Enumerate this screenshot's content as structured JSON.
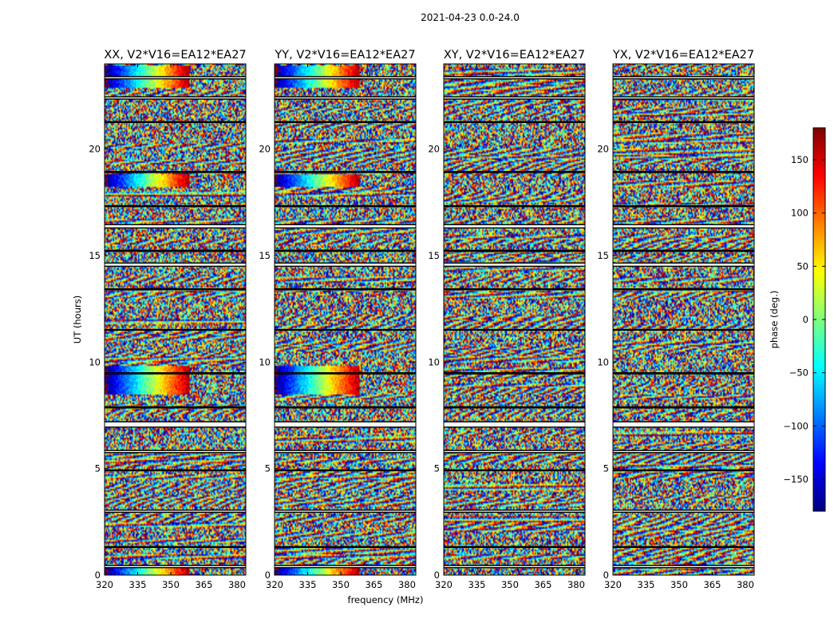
{
  "figure": {
    "title": "2021-04-23 0.0-24.0",
    "xlabel": "frequency (MHz)",
    "ylabel": "UT (hours)"
  },
  "colorbar": {
    "label": "phase (deg.)",
    "range": [
      -180,
      180
    ],
    "ticks": [
      150,
      100,
      50,
      0,
      -50,
      -100,
      -150
    ],
    "tick_labels": [
      "150",
      "100",
      "50",
      "0",
      "−50",
      "−100",
      "−150"
    ],
    "colormap": [
      "#00007f",
      "#0000ff",
      "#007fff",
      "#00ffff",
      "#7fff7f",
      "#ffff00",
      "#ff7f00",
      "#ff0000",
      "#7f0000"
    ]
  },
  "chart_data": {
    "type": "heatmap",
    "value": "visibility phase (deg.)",
    "x_range": [
      320,
      384
    ],
    "y_range": [
      0,
      24
    ],
    "x_ticks": [
      320,
      335,
      350,
      365,
      380
    ],
    "y_ticks": [
      0,
      5,
      10,
      15,
      20
    ],
    "panels": [
      {
        "title": "XX, V2*V16=EA12*EA27"
      },
      {
        "title": "YY, V2*V16=EA12*EA27"
      },
      {
        "title": "XY, V2*V16=EA12*EA27"
      },
      {
        "title": "YX, V2*V16=EA12*EA27"
      }
    ],
    "flagged_gaps_hours": [
      [
        0.35,
        0.45
      ],
      [
        1.3,
        1.34
      ],
      [
        2.95,
        3.05
      ],
      [
        4.9,
        4.94
      ],
      [
        5.75,
        5.85
      ],
      [
        6.95,
        7.2
      ],
      [
        7.85,
        7.9
      ],
      [
        9.45,
        9.5
      ],
      [
        11.5,
        11.53
      ],
      [
        13.4,
        13.44
      ],
      [
        14.5,
        14.65
      ],
      [
        15.2,
        15.25
      ],
      [
        16.3,
        16.45
      ],
      [
        17.3,
        17.34
      ],
      [
        18.9,
        18.95
      ],
      [
        21.25,
        21.29
      ],
      [
        22.35,
        22.45
      ],
      [
        23.3,
        23.4
      ]
    ]
  }
}
